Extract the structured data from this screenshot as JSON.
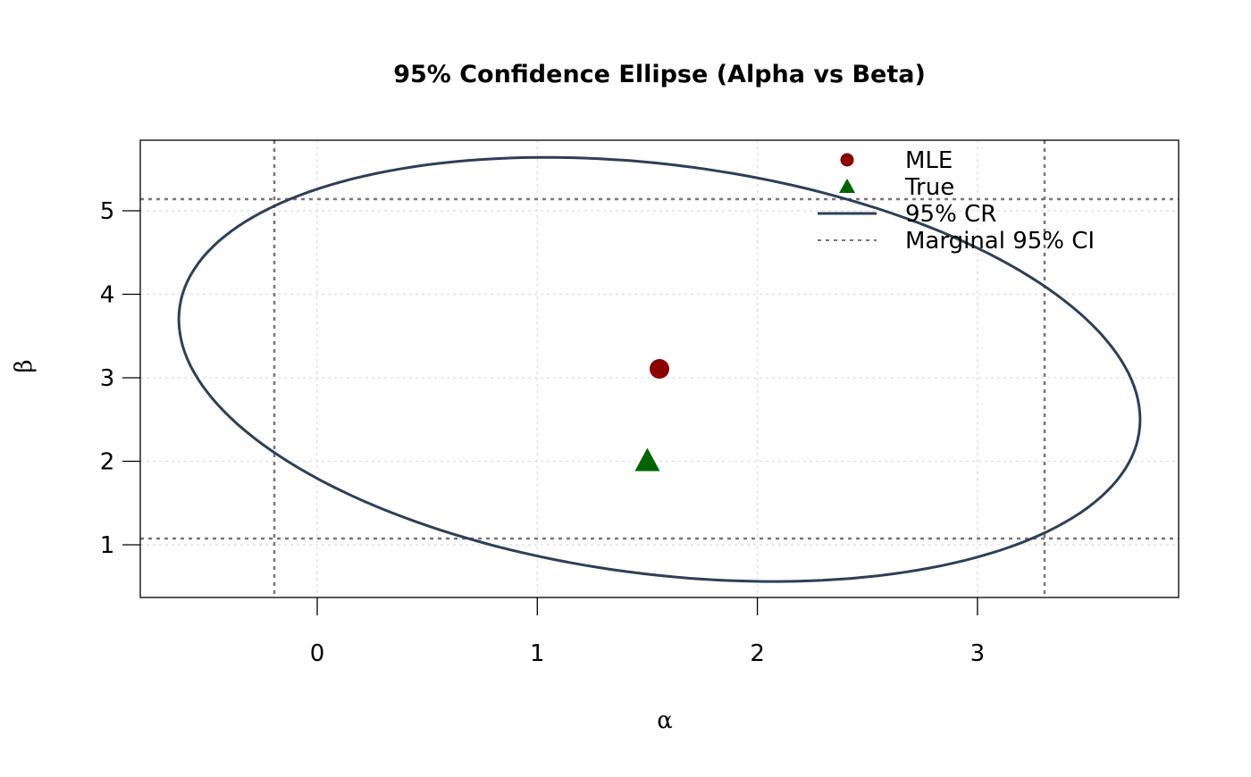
{
  "chart_data": {
    "type": "scatter",
    "title": "95% Confidence Ellipse (Alpha vs Beta)",
    "xlabel": "α",
    "ylabel": "β",
    "xlim": [
      -0.804,
      3.914
    ],
    "ylim": [
      0.369,
      5.845
    ],
    "xticks": [
      0,
      1,
      2,
      3
    ],
    "yticks": [
      1,
      2,
      3,
      4,
      5
    ],
    "grid": true,
    "points": [
      {
        "name": "MLE",
        "x": 1.555,
        "y": 3.107,
        "marker": "circle",
        "color": "#8b0000"
      },
      {
        "name": "True",
        "x": 1.5,
        "y": 2.0,
        "marker": "triangle",
        "color": "#006400"
      }
    ],
    "ellipse": {
      "name": "95% CR",
      "center": [
        1.555,
        3.1
      ],
      "covariance": [
        [
          4.77,
          -1.31
        ],
        [
          -1.31,
          6.45
        ]
      ],
      "color": "#2e3f57"
    },
    "marginal_ci": {
      "name": "Marginal 95% CI",
      "alpha": [
        -0.195,
        3.305
      ],
      "beta": [
        1.075,
        5.139
      ],
      "color": "#777777"
    },
    "legend": {
      "placement": "top-right",
      "entries": [
        "MLE",
        "True",
        "95% CR",
        "Marginal 95% CI"
      ]
    }
  }
}
